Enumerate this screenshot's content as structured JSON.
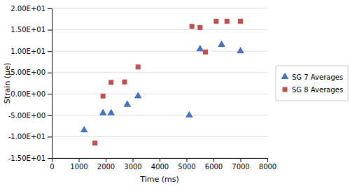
{
  "chart_data": {
    "type": "scatter",
    "xlabel": "Time (ms)",
    "ylabel": "Strain (μe)",
    "xlim": [
      0,
      8000
    ],
    "ylim": [
      -15,
      20
    ],
    "xticks": [
      0,
      1000,
      2000,
      3000,
      4000,
      5000,
      6000,
      7000,
      8000
    ],
    "yticks": [
      {
        "value": -15,
        "label": "-1.50E+01"
      },
      {
        "value": -10,
        "label": "-1.00E+01"
      },
      {
        "value": -5,
        "label": "-5.00E+00"
      },
      {
        "value": 0,
        "label": "0.00E+00"
      },
      {
        "value": 5,
        "label": "5.00E+00"
      },
      {
        "value": 10,
        "label": "1.00E+01"
      },
      {
        "value": 15,
        "label": "1.50E+01"
      },
      {
        "value": 20,
        "label": "2.00E+01"
      }
    ],
    "grid": "y",
    "legend": "right",
    "series": [
      {
        "name": "SG 7 Averages",
        "color": "#4472C4",
        "marker": "triangle",
        "x": [
          1200,
          1900,
          2200,
          2800,
          3200,
          5100,
          5500,
          6300,
          7000
        ],
        "values": [
          -8.5,
          -4.5,
          -4.5,
          -2.5,
          -0.5,
          -5.0,
          10.5,
          11.5,
          10.0
        ]
      },
      {
        "name": "SG 8 Averages",
        "color": "#C0504D",
        "marker": "square",
        "x": [
          1600,
          1900,
          2200,
          2700,
          3200,
          5200,
          5500,
          5700,
          6100,
          6500,
          7000
        ],
        "values": [
          -11.5,
          -0.5,
          2.7,
          2.8,
          6.3,
          15.8,
          15.5,
          9.8,
          17.0,
          17.0,
          17.0
        ]
      }
    ]
  }
}
